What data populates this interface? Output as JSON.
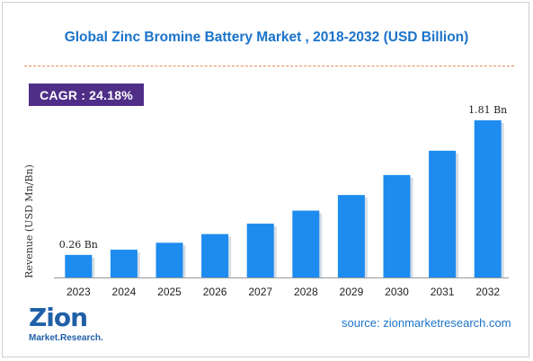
{
  "header": {
    "title": "Global Zinc Bromine Battery Market , 2018-2032 (USD Billion)",
    "cagr": "CAGR : 24.18%"
  },
  "footer": {
    "source": "source: zionmarketresearch.com",
    "logo_main": "Zion",
    "logo_sub": "Market.Research."
  },
  "colors": {
    "bar": "#1e8bef",
    "title": "#1a73c9",
    "cagr_bg": "#4f2e87",
    "logo": "#1f5fa8"
  },
  "chart_data": {
    "type": "bar",
    "categories": [
      "2023",
      "2024",
      "2025",
      "2026",
      "2027",
      "2028",
      "2029",
      "2030",
      "2031",
      "2032"
    ],
    "values": [
      0.26,
      0.32,
      0.4,
      0.5,
      0.62,
      0.77,
      0.95,
      1.18,
      1.46,
      1.81
    ],
    "data_labels": [
      {
        "index": 0,
        "text": "0.26 Bn"
      },
      {
        "index": 9,
        "text": "1.81 Bn"
      }
    ],
    "ylabel": "Revenue (USD Mn/Bn)",
    "ylim": [
      0,
      1.81
    ],
    "grid": false
  }
}
